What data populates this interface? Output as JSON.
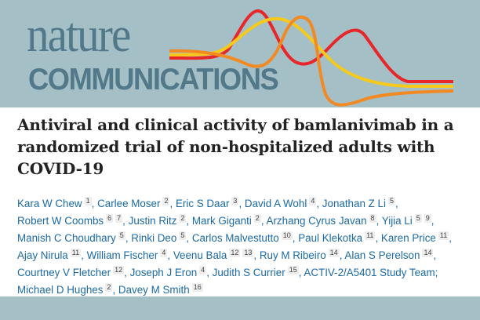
{
  "journal": {
    "logo_line1": "nature",
    "logo_line2": "COMMUNICATIONS"
  },
  "article": {
    "title": "Antiviral and clinical activity of bamlanivimab in a randomized trial of non-hospitalized adults with COVID-19",
    "authors": [
      {
        "name": "Kara W Chew",
        "aff": [
          "1"
        ]
      },
      {
        "name": "Carlee Moser",
        "aff": [
          "2"
        ]
      },
      {
        "name": "Eric S Daar",
        "aff": [
          "3"
        ]
      },
      {
        "name": "David A Wohl",
        "aff": [
          "4"
        ]
      },
      {
        "name": "Jonathan Z Li",
        "aff": [
          "5"
        ]
      },
      {
        "name": "Robert W Coombs",
        "aff": [
          "6",
          "7"
        ]
      },
      {
        "name": "Justin Ritz",
        "aff": [
          "2"
        ]
      },
      {
        "name": "Mark Giganti",
        "aff": [
          "2"
        ]
      },
      {
        "name": "Arzhang Cyrus Javan",
        "aff": [
          "8"
        ]
      },
      {
        "name": "Yijia Li",
        "aff": [
          "5",
          "9"
        ]
      },
      {
        "name": "Manish C Choudhary",
        "aff": [
          "5"
        ]
      },
      {
        "name": "Rinki Deo",
        "aff": [
          "5"
        ]
      },
      {
        "name": "Carlos Malvestutto",
        "aff": [
          "10"
        ]
      },
      {
        "name": "Paul Klekotka",
        "aff": [
          "11"
        ]
      },
      {
        "name": "Karen Price",
        "aff": [
          "11"
        ]
      },
      {
        "name": "Ajay Nirula",
        "aff": [
          "11"
        ]
      },
      {
        "name": "William Fischer",
        "aff": [
          "4"
        ]
      },
      {
        "name": "Veenu Bala",
        "aff": [
          "12",
          "13"
        ]
      },
      {
        "name": "Ruy M Ribeiro",
        "aff": [
          "14"
        ]
      },
      {
        "name": "Alan S Perelson",
        "aff": [
          "14"
        ]
      },
      {
        "name": "Courtney V Fletcher",
        "aff": [
          "12"
        ]
      },
      {
        "name": "Joseph J Eron",
        "aff": [
          "4"
        ]
      },
      {
        "name": "Judith S Currier",
        "aff": [
          "15"
        ]
      },
      {
        "name": "ACTIV-2/A5401 Study Team",
        "aff": [],
        "sep": ";"
      },
      {
        "name": "Michael D Hughes",
        "aff": [
          "2"
        ]
      },
      {
        "name": "Davey M Smith",
        "aff": [
          "16"
        ]
      }
    ]
  },
  "colors": {
    "header_bg": "#a5bfc6",
    "logo_text": "#52798a",
    "author_link": "#1b6aa5",
    "ribbon_red": "#e8262a",
    "ribbon_yellow": "#f7c91a",
    "ribbon_orange": "#f28a24"
  }
}
